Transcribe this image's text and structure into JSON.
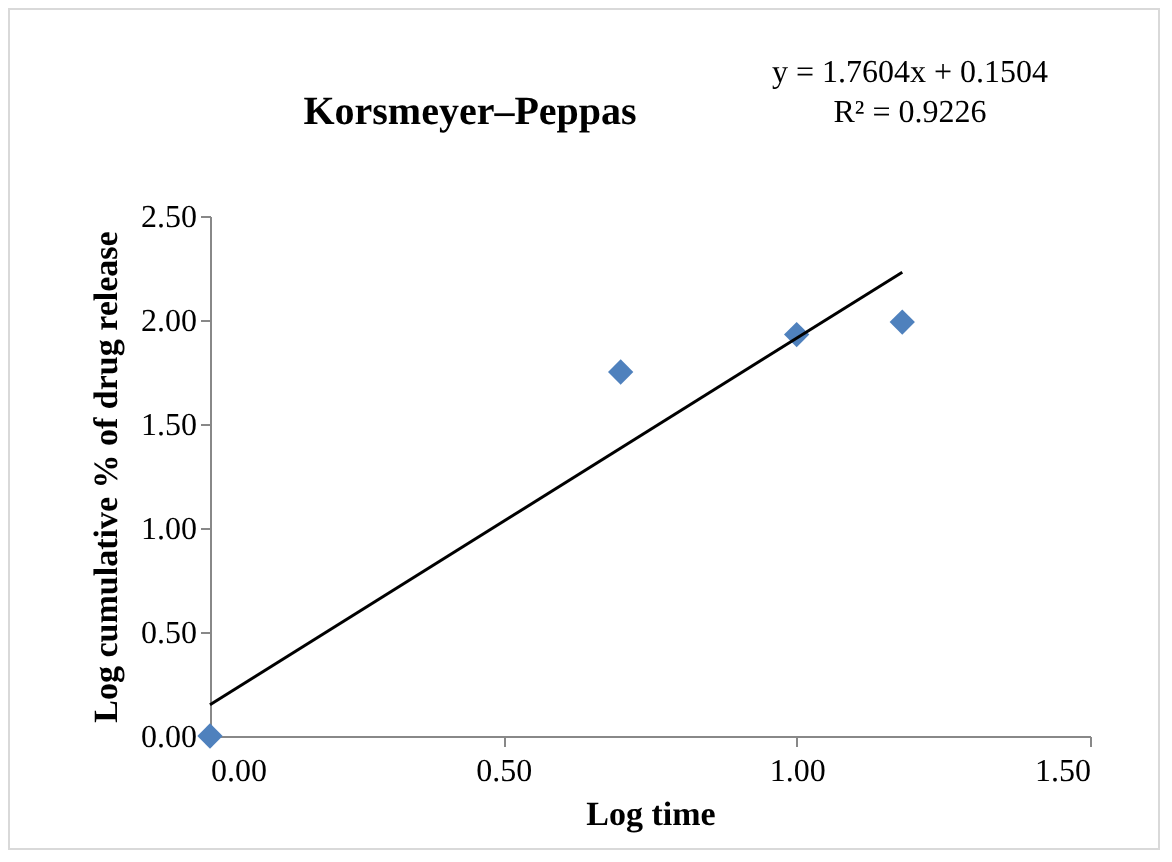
{
  "chart_data": {
    "type": "scatter",
    "title": "Korsmeyer–Peppas",
    "xlabel": "Log time",
    "ylabel": "Log cumulative % of drug release",
    "annotations": [
      "y = 1.7604x + 0.1504",
      "R² = 0.9226"
    ],
    "x": [
      0,
      0.7,
      1.0,
      1.18
    ],
    "series": [
      {
        "color": "#4f81bd",
        "marker": "diamond",
        "values": [
          0,
          1.75,
          1.93,
          1.99
        ]
      },
      {
        "type": "line",
        "color": "#000000",
        "x": [
          0,
          1.18
        ],
        "values": [
          0.15,
          2.23
        ]
      }
    ],
    "xlim": [
      0,
      1.5
    ],
    "xticks": [
      {
        "value": 0,
        "label": "0.00"
      },
      {
        "value": 0.5,
        "label": "0.50"
      },
      {
        "value": 1,
        "label": "1.00"
      },
      {
        "value": 1.5,
        "label": "1.50"
      }
    ],
    "ylim": [
      0,
      2.5
    ],
    "yticks": [
      {
        "value": 0,
        "label": "0.00"
      },
      {
        "value": 0.5,
        "label": "0.50"
      },
      {
        "value": 1,
        "label": "1.00"
      },
      {
        "value": 1.5,
        "label": "1.50"
      },
      {
        "value": 2,
        "label": "2.00"
      },
      {
        "value": 2.5,
        "label": "2.50"
      }
    ],
    "grid": false
  }
}
